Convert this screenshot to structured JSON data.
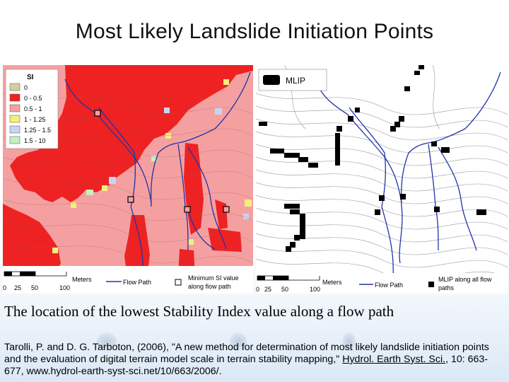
{
  "title": "Most Likely Landslide Initiation Points",
  "left_map": {
    "legend_title": "SI",
    "legend_items": [
      {
        "label": "0",
        "color": "#d2cf9e"
      },
      {
        "label": "0 - 0.5",
        "color": "#ee2222"
      },
      {
        "label": "0.5 - 1",
        "color": "#f5a0a0"
      },
      {
        "label": "1 - 1.25",
        "color": "#f2f07a"
      },
      {
        "label": "1.25 - 1.5",
        "color": "#c8d4f0"
      },
      {
        "label": "1.5 - 10",
        "color": "#c5f0c0"
      }
    ],
    "scale_label": "Meters",
    "scale_ticks": [
      "0",
      "25",
      "50",
      "100"
    ],
    "flow_path_label": "Flow Path",
    "min_si_label_1": "Minimum SI value",
    "min_si_label_2": "along flow path"
  },
  "right_map": {
    "legend_label": "MLIP",
    "scale_label": "Meters",
    "scale_ticks": [
      "0",
      "25",
      "50",
      "100"
    ],
    "flow_path_label": "Flow Path",
    "mlip_label_1": "MLIP along all flow",
    "mlip_label_2": "paths"
  },
  "caption": "The location of the lowest Stability Index value along a flow path",
  "citation": {
    "part1": "Tarolli, P. and D. G. Tarboton, (2006), \"A new method for determination of most likely landslide initiation points and the evaluation of digital terrain model scale in terrain stability mapping,\" ",
    "journal": "Hydrol. Earth Syst. Sci.",
    "part2": ", 10: 663-677, www.hydrol-earth-syst-sci.net/10/663/2006/."
  }
}
